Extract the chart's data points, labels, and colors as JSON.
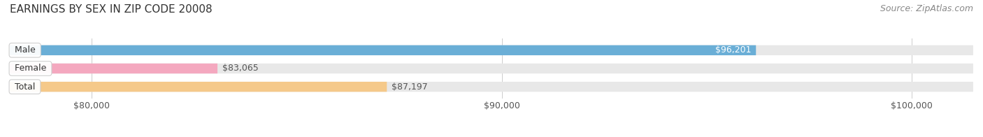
{
  "title": "EARNINGS BY SEX IN ZIP CODE 20008",
  "source": "Source: ZipAtlas.com",
  "categories": [
    "Male",
    "Female",
    "Total"
  ],
  "values": [
    96201,
    83065,
    87197
  ],
  "xlim": [
    78000,
    101500
  ],
  "xticks": [
    80000,
    90000,
    100000
  ],
  "xtick_labels": [
    "$80,000",
    "$90,000",
    "$100,000"
  ],
  "bar_colors": [
    "#6aaed6",
    "#f4a8bf",
    "#f5c98a"
  ],
  "bar_height": 0.55,
  "bg_color": "#ffffff",
  "title_fontsize": 11,
  "source_fontsize": 9,
  "tick_fontsize": 9,
  "label_fontsize": 9,
  "value_fontsize": 9
}
